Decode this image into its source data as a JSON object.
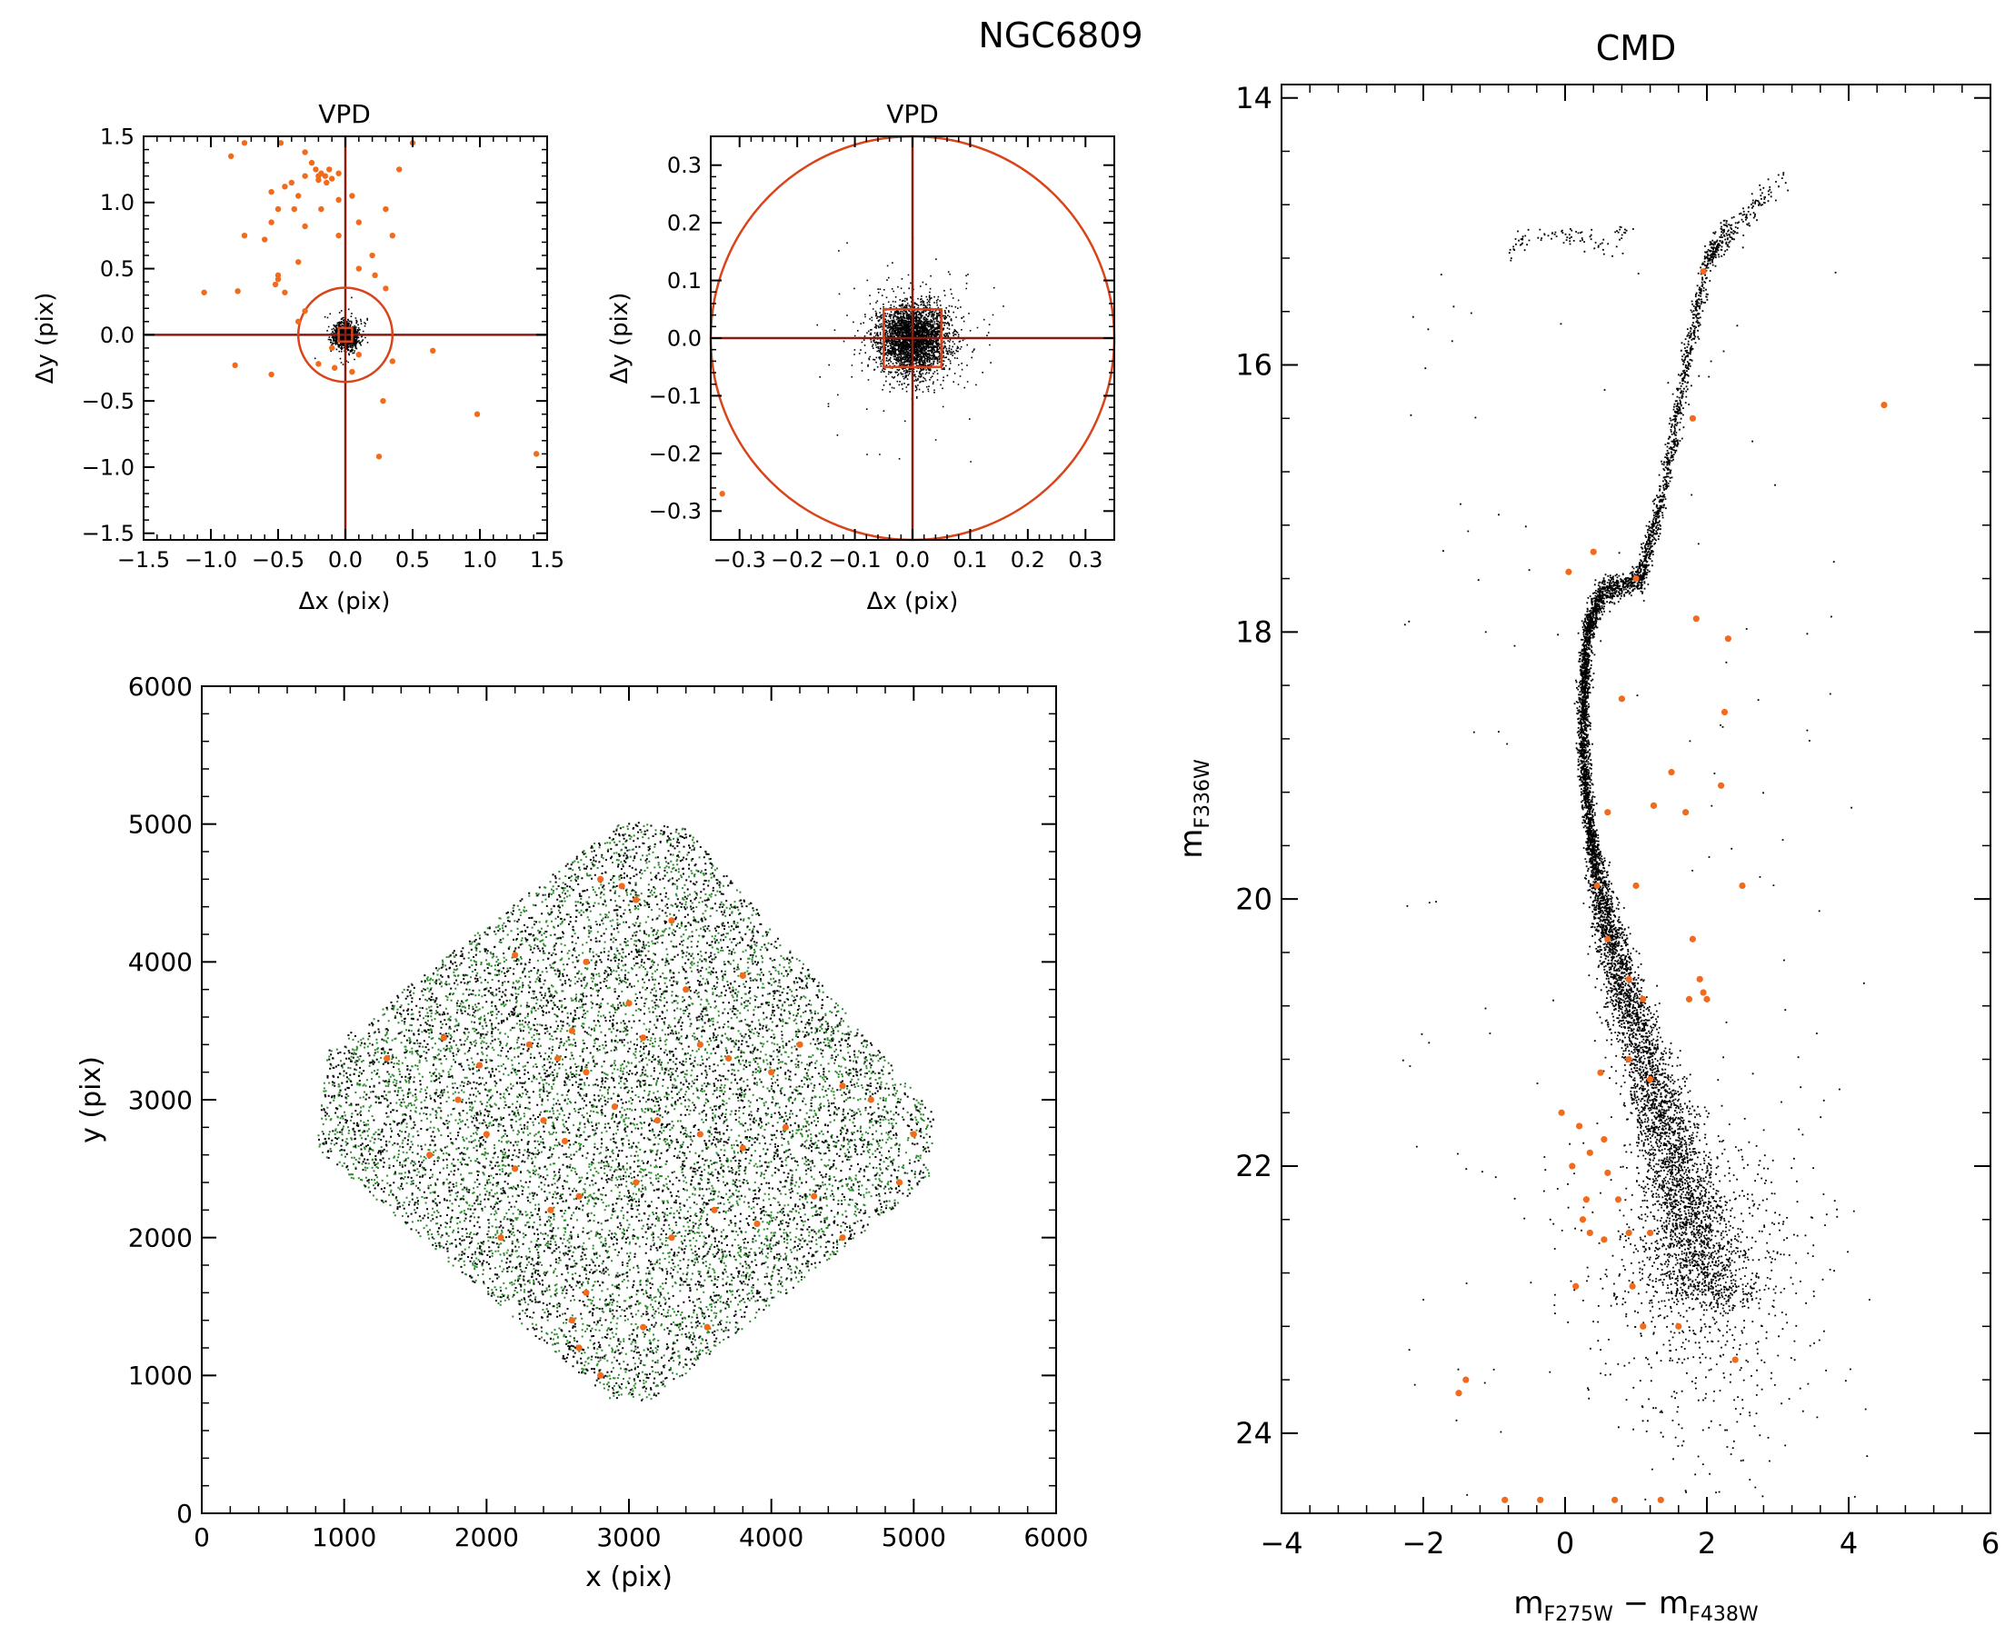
{
  "figure": {
    "title": "NGC6809"
  },
  "colors": {
    "axis": "#000000",
    "cross": "#8b1a10",
    "highlight": "#f26a1b",
    "field_green": "#2e8b2e",
    "field_black": "#000000"
  },
  "chart_data": [
    {
      "id": "vpd_wide",
      "type": "scatter",
      "title": "VPD",
      "xlabel": "Δx (pix)",
      "ylabel": "Δy (pix)",
      "xlim": [
        -1.5,
        1.5
      ],
      "ylim": [
        -1.55,
        1.5
      ],
      "xticks": [
        -1.5,
        -1.0,
        -0.5,
        0.0,
        0.5,
        1.0,
        1.5
      ],
      "xtick_labels": [
        "−1.5",
        "−1.0",
        "−0.5",
        "0.0",
        "0.5",
        "1.0",
        "1.5"
      ],
      "yticks": [
        -1.5,
        -1.0,
        -0.5,
        0.0,
        0.5,
        1.0,
        1.5
      ],
      "ytick_labels": [
        "−1.5",
        "−1.0",
        "−0.5",
        "0.0",
        "0.5",
        "1.0",
        "1.5"
      ],
      "grid": false,
      "cross_at": [
        0,
        0
      ],
      "selection_circle_radius": 0.35,
      "selection_box_halfwidth": 0.05,
      "member_cloud": {
        "center": [
          0.0,
          0.0
        ],
        "sigma": 0.045,
        "approx_count": 1200
      },
      "series": [
        {
          "color": "orange",
          "points": [
            [
              -0.85,
              1.35
            ],
            [
              -0.75,
              1.45
            ],
            [
              -0.48,
              1.45
            ],
            [
              -0.3,
              1.38
            ],
            [
              -0.25,
              1.3
            ],
            [
              -0.22,
              1.25
            ],
            [
              -0.2,
              1.2
            ],
            [
              -0.18,
              1.22
            ],
            [
              -0.15,
              1.2
            ],
            [
              -0.12,
              1.25
            ],
            [
              -0.1,
              1.18
            ],
            [
              -0.14,
              1.15
            ],
            [
              -0.2,
              1.17
            ],
            [
              -0.05,
              1.22
            ],
            [
              -0.3,
              1.2
            ],
            [
              -0.4,
              1.15
            ],
            [
              -0.45,
              1.12
            ],
            [
              -0.55,
              1.08
            ],
            [
              -0.35,
              1.05
            ],
            [
              -0.38,
              0.95
            ],
            [
              -0.5,
              0.95
            ],
            [
              -0.55,
              0.85
            ],
            [
              -0.18,
              0.95
            ],
            [
              -0.3,
              0.82
            ],
            [
              -0.6,
              0.72
            ],
            [
              -0.75,
              0.75
            ],
            [
              -0.35,
              0.55
            ],
            [
              -0.05,
              1.02
            ],
            [
              0.05,
              1.05
            ],
            [
              0.1,
              0.85
            ],
            [
              0.3,
              0.95
            ],
            [
              0.4,
              1.25
            ],
            [
              0.5,
              1.45
            ],
            [
              0.35,
              0.75
            ],
            [
              0.2,
              0.6
            ],
            [
              0.1,
              0.5
            ],
            [
              0.22,
              0.45
            ],
            [
              0.3,
              0.35
            ],
            [
              -0.05,
              0.75
            ],
            [
              -0.5,
              0.45
            ],
            [
              -0.52,
              0.38
            ],
            [
              -0.45,
              0.32
            ],
            [
              -0.5,
              0.42
            ],
            [
              -0.8,
              0.33
            ],
            [
              -1.05,
              0.32
            ],
            [
              -0.3,
              0.18
            ],
            [
              -0.35,
              0.1
            ],
            [
              -0.1,
              -0.1
            ],
            [
              0.1,
              -0.15
            ],
            [
              0.28,
              -0.5
            ],
            [
              0.25,
              -0.92
            ],
            [
              -0.55,
              -0.3
            ],
            [
              -0.82,
              -0.23
            ],
            [
              -0.2,
              -0.22
            ],
            [
              -0.08,
              -0.25
            ],
            [
              0.05,
              -0.28
            ],
            [
              0.35,
              -0.2
            ],
            [
              0.65,
              -0.12
            ],
            [
              0.98,
              -0.6
            ],
            [
              1.42,
              -0.9
            ]
          ]
        }
      ]
    },
    {
      "id": "vpd_zoom",
      "type": "scatter",
      "title": "VPD",
      "xlabel": "Δx (pix)",
      "ylabel": "Δy (pix)",
      "xlim": [
        -0.35,
        0.35
      ],
      "ylim": [
        -0.35,
        0.35
      ],
      "xticks": [
        -0.3,
        -0.2,
        -0.1,
        0.0,
        0.1,
        0.2,
        0.3
      ],
      "xtick_labels": [
        "−0.3",
        "−0.2",
        "−0.1",
        "0.0",
        "0.1",
        "0.2",
        "0.3"
      ],
      "yticks": [
        -0.3,
        -0.2,
        -0.1,
        0.0,
        0.1,
        0.2,
        0.3
      ],
      "ytick_labels": [
        "−0.3",
        "−0.2",
        "−0.1",
        "0.0",
        "0.1",
        "0.2",
        "0.3"
      ],
      "grid": false,
      "cross_at": [
        0,
        0
      ],
      "selection_circle_radius": 0.35,
      "selection_box_halfwidth": 0.05,
      "member_cloud": {
        "center": [
          0.0,
          0.0
        ],
        "sigma": 0.03,
        "approx_count": 3200
      },
      "series": [
        {
          "color": "orange",
          "points": [
            [
              -0.33,
              -0.27
            ]
          ]
        }
      ]
    },
    {
      "id": "xy_map",
      "type": "scatter",
      "title": "",
      "xlabel": "x (pix)",
      "ylabel": "y (pix)",
      "xlim": [
        0,
        6000
      ],
      "ylim": [
        0,
        6000
      ],
      "xticks": [
        0,
        1000,
        2000,
        3000,
        4000,
        5000,
        6000
      ],
      "xtick_labels": [
        "0",
        "1000",
        "2000",
        "3000",
        "4000",
        "5000",
        "6000"
      ],
      "yticks": [
        0,
        1000,
        2000,
        3000,
        4000,
        5000,
        6000
      ],
      "ytick_labels": [
        "0",
        "1000",
        "2000",
        "3000",
        "4000",
        "5000",
        "6000"
      ],
      "grid": false,
      "field_footprint": [
        [
          2950,
          5030
        ],
        [
          3380,
          5000
        ],
        [
          5150,
          2880
        ],
        [
          5100,
          2420
        ],
        [
          3150,
          820
        ],
        [
          2850,
          840
        ],
        [
          800,
          2650
        ],
        [
          880,
          3380
        ]
      ],
      "field_density": {
        "green_count": 6000,
        "black_count": 5000
      },
      "series": [
        {
          "color": "orange",
          "points": [
            [
              2950,
              4550
            ],
            [
              3300,
              4300
            ],
            [
              3050,
              4450
            ],
            [
              2700,
              4000
            ],
            [
              2200,
              4050
            ],
            [
              1700,
              3450
            ],
            [
              1300,
              3300
            ],
            [
              1950,
              3250
            ],
            [
              2500,
              3300
            ],
            [
              2700,
              3200
            ],
            [
              3100,
              3450
            ],
            [
              3500,
              3400
            ],
            [
              3700,
              3300
            ],
            [
              4200,
              3400
            ],
            [
              4500,
              3100
            ],
            [
              4700,
              3000
            ],
            [
              5000,
              2750
            ],
            [
              4100,
              2800
            ],
            [
              3800,
              2650
            ],
            [
              3500,
              2750
            ],
            [
              3200,
              2850
            ],
            [
              2900,
              2950
            ],
            [
              2550,
              2700
            ],
            [
              2400,
              2850
            ],
            [
              2000,
              2750
            ],
            [
              1800,
              3000
            ],
            [
              2200,
              2500
            ],
            [
              2650,
              2300
            ],
            [
              3050,
              2400
            ],
            [
              3600,
              2200
            ],
            [
              3900,
              2100
            ],
            [
              4300,
              2300
            ],
            [
              4500,
              2000
            ],
            [
              4900,
              2400
            ],
            [
              2450,
              2200
            ],
            [
              2700,
              1600
            ],
            [
              2600,
              1400
            ],
            [
              2650,
              1200
            ],
            [
              2800,
              1000
            ],
            [
              3100,
              1350
            ],
            [
              3550,
              1350
            ],
            [
              2600,
              3500
            ],
            [
              3000,
              3700
            ],
            [
              3400,
              3800
            ],
            [
              3800,
              3900
            ],
            [
              2300,
              3400
            ],
            [
              1600,
              2600
            ],
            [
              2100,
              2000
            ],
            [
              3300,
              2000
            ],
            [
              4000,
              3200
            ],
            [
              2800,
              4600
            ]
          ]
        }
      ]
    },
    {
      "id": "cmd",
      "type": "scatter",
      "title": "CMD",
      "xlabel": "m_F275W − m_F438W",
      "ylabel": "m_F336W",
      "xlim": [
        -4,
        6
      ],
      "ylim": [
        24.6,
        13.9
      ],
      "xticks": [
        -4,
        -2,
        0,
        2,
        4,
        6
      ],
      "xtick_labels": [
        "−4",
        "−2",
        "0",
        "2",
        "4",
        "6"
      ],
      "yticks": [
        14,
        16,
        18,
        20,
        22,
        24
      ],
      "ytick_labels": [
        "14",
        "16",
        "18",
        "20",
        "22",
        "24"
      ],
      "grid": false,
      "sequence_ridge": [
        [
          3.1,
          14.6
        ],
        [
          2.3,
          15.0
        ],
        [
          2.0,
          15.2
        ],
        [
          1.7,
          16.0
        ],
        [
          1.35,
          17.0
        ],
        [
          1.05,
          17.6
        ],
        [
          0.5,
          17.7
        ],
        [
          0.3,
          18.0
        ],
        [
          0.25,
          18.5
        ],
        [
          0.25,
          19.0
        ],
        [
          0.35,
          19.5
        ],
        [
          0.5,
          20.0
        ],
        [
          0.75,
          20.5
        ],
        [
          1.0,
          21.0
        ],
        [
          1.3,
          21.5
        ],
        [
          1.55,
          22.0
        ],
        [
          1.8,
          22.5
        ],
        [
          2.05,
          23.0
        ]
      ],
      "horizontal_branch": [
        [
          -0.8,
          15.2
        ],
        [
          -0.6,
          15.05
        ],
        [
          -0.2,
          15.0
        ],
        [
          0.2,
          15.05
        ],
        [
          0.6,
          15.1
        ],
        [
          0.9,
          15.0
        ]
      ],
      "series": [
        {
          "color": "orange",
          "points": [
            [
              1.95,
              15.3
            ],
            [
              4.5,
              16.3
            ],
            [
              1.8,
              16.4
            ],
            [
              0.05,
              17.55
            ],
            [
              0.4,
              17.4
            ],
            [
              1.0,
              17.6
            ],
            [
              1.85,
              17.9
            ],
            [
              2.3,
              18.05
            ],
            [
              0.8,
              18.5
            ],
            [
              2.25,
              18.6
            ],
            [
              1.5,
              19.05
            ],
            [
              2.2,
              19.15
            ],
            [
              1.25,
              19.3
            ],
            [
              1.7,
              19.35
            ],
            [
              0.6,
              19.35
            ],
            [
              0.45,
              19.9
            ],
            [
              1.0,
              19.9
            ],
            [
              2.5,
              19.9
            ],
            [
              0.6,
              20.3
            ],
            [
              1.8,
              20.3
            ],
            [
              0.9,
              20.6
            ],
            [
              1.9,
              20.6
            ],
            [
              1.1,
              20.75
            ],
            [
              1.95,
              20.7
            ],
            [
              1.75,
              20.75
            ],
            [
              2.0,
              20.75
            ],
            [
              0.9,
              21.2
            ],
            [
              0.5,
              21.3
            ],
            [
              1.2,
              21.35
            ],
            [
              -0.05,
              21.6
            ],
            [
              0.2,
              21.7
            ],
            [
              0.55,
              21.8
            ],
            [
              0.35,
              21.9
            ],
            [
              0.1,
              22.0
            ],
            [
              0.6,
              22.05
            ],
            [
              0.3,
              22.25
            ],
            [
              0.75,
              22.25
            ],
            [
              0.25,
              22.4
            ],
            [
              0.35,
              22.5
            ],
            [
              0.55,
              22.55
            ],
            [
              0.9,
              22.5
            ],
            [
              1.2,
              22.5
            ],
            [
              0.15,
              22.9
            ],
            [
              0.95,
              22.9
            ],
            [
              1.1,
              23.2
            ],
            [
              1.6,
              23.2
            ],
            [
              2.4,
              23.45
            ],
            [
              -1.4,
              23.6
            ],
            [
              -1.5,
              23.7
            ],
            [
              -0.85,
              24.5
            ],
            [
              -0.35,
              24.5
            ],
            [
              0.7,
              24.5
            ],
            [
              1.35,
              24.5
            ]
          ]
        }
      ]
    }
  ]
}
